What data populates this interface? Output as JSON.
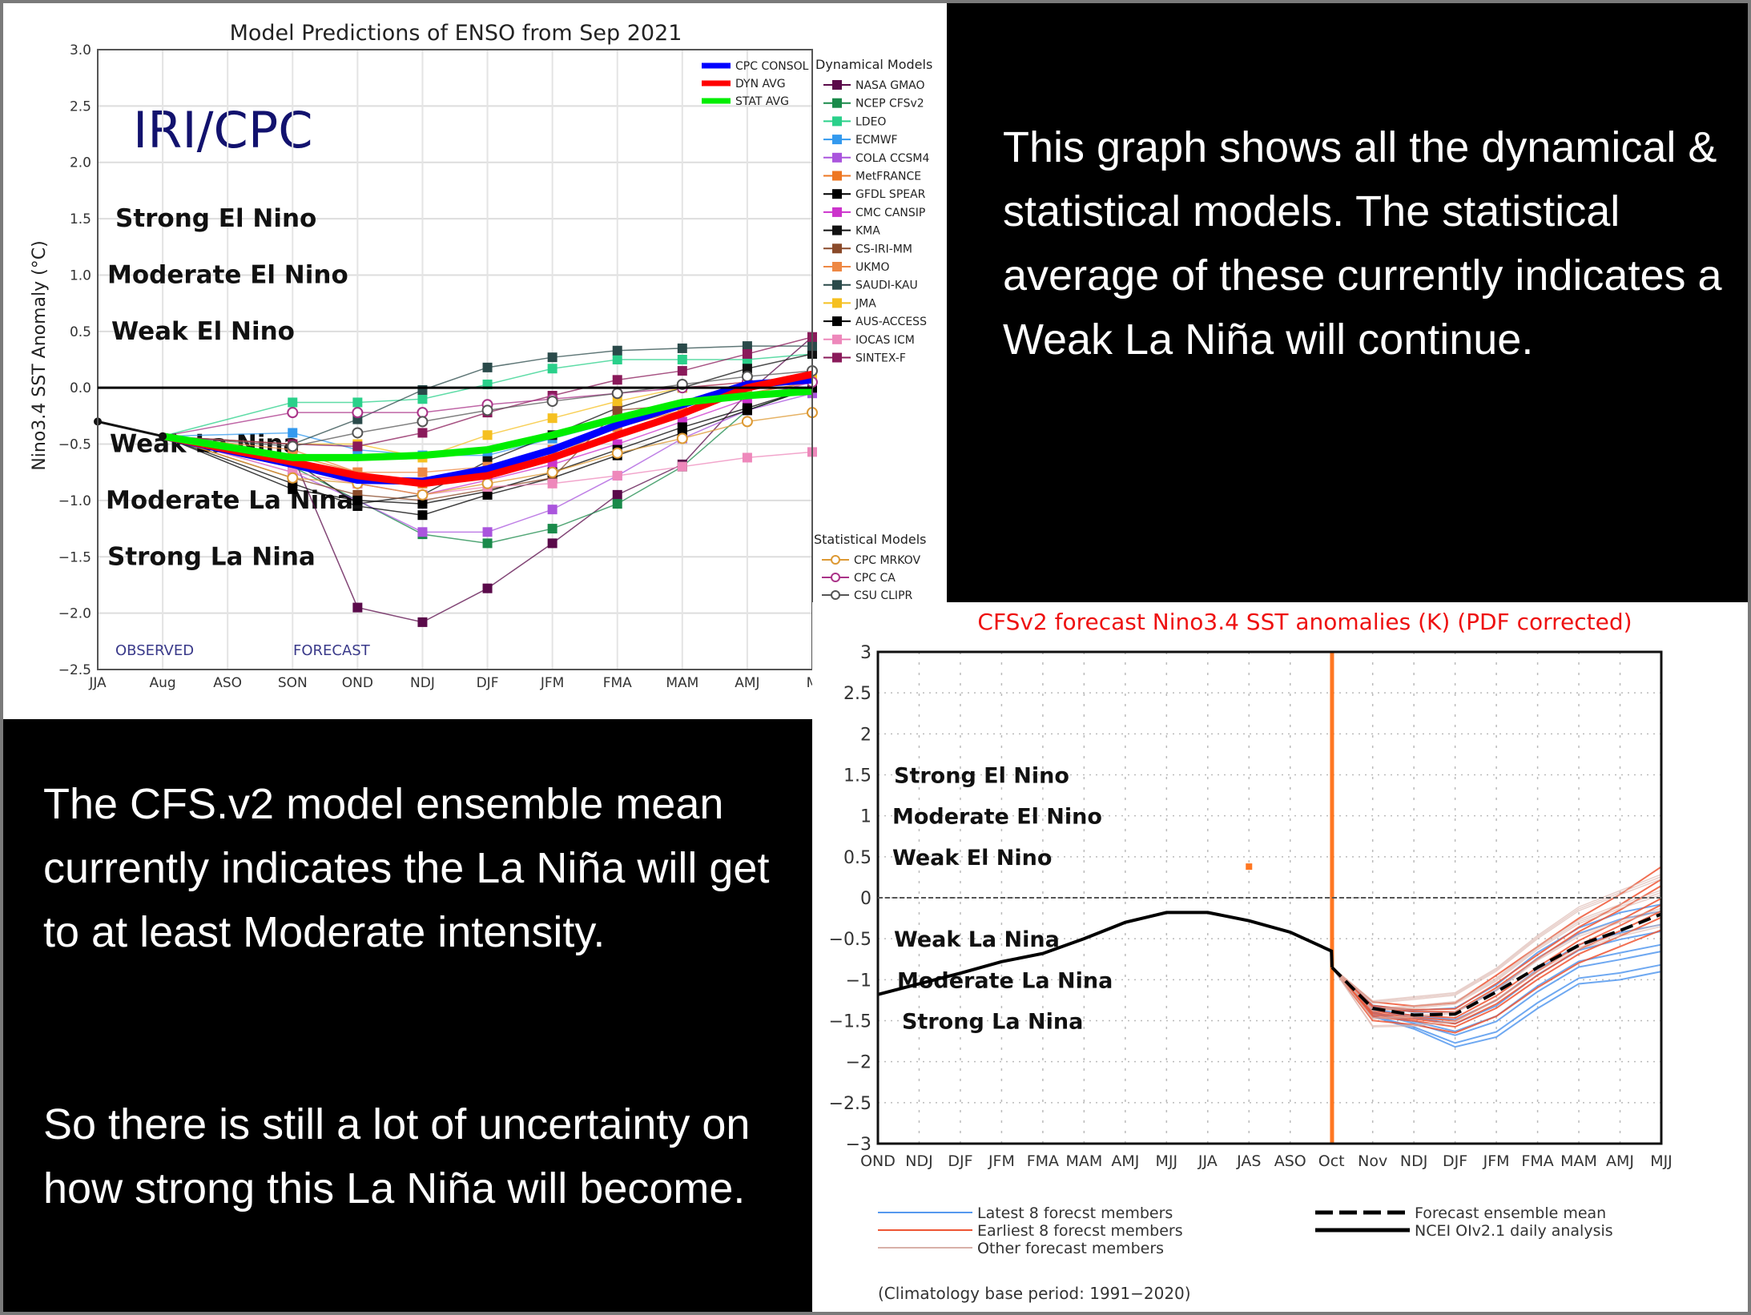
{
  "captions": {
    "top_right": "This graph shows all the dynamical & statistical models. The statistical average of these currently indicates a Weak La Niña will continue.",
    "bottom_left_1": "The CFS.v2 model ensemble mean currently indicates the La Niña will get to at least Moderate intensity.",
    "bottom_left_2": "So there is still a lot of uncertainty on how strong this La Niña will become."
  },
  "chart_data": [
    {
      "type": "line",
      "title": "Model Predictions of ENSO from Sep 2021",
      "watermark": "IRI/CPC",
      "ylabel": "Nino3.4 SST Anomaly (°C)",
      "xlabel": "",
      "ylim": [
        -2.5,
        3.0
      ],
      "yticks": [
        "3.0",
        "2.5",
        "2.0",
        "1.5",
        "1.0",
        "0.5",
        "0.0",
        "−0.5",
        "−1.0",
        "−1.5",
        "−2.0",
        "−2.5"
      ],
      "categories": [
        "JJA",
        "Aug",
        "ASO",
        "SON",
        "OND",
        "NDJ",
        "DJF",
        "JFM",
        "FMA",
        "MAM",
        "AMJ",
        "M"
      ],
      "grid": true,
      "annotations": {
        "observed": "OBSERVED",
        "forecast": "FORECAST",
        "zones": [
          "Strong El Nino",
          "Moderate El Nino",
          "Weak El Nino",
          "Weak La Nina",
          "Moderate La Nina",
          "Strong La Nina"
        ]
      },
      "observed": {
        "name": "Observed",
        "x": [
          "JJA",
          "Aug"
        ],
        "values": [
          -0.3,
          -0.43
        ]
      },
      "averages": [
        {
          "name": "CPC CONSOL",
          "color": "#0000ff",
          "values": [
            null,
            null,
            null,
            -0.68,
            -0.82,
            -0.83,
            -0.72,
            -0.55,
            -0.33,
            -0.15,
            0.03,
            0.07
          ]
        },
        {
          "name": "DYN AVG",
          "color": "#ff0000",
          "values": [
            null,
            null,
            null,
            -0.66,
            -0.78,
            -0.85,
            -0.78,
            -0.62,
            -0.42,
            -0.23,
            0.0,
            0.12
          ]
        },
        {
          "name": "STAT AVG",
          "color": "#00ee00",
          "values": [
            null,
            null,
            null,
            -0.62,
            -0.62,
            -0.6,
            -0.55,
            -0.42,
            -0.27,
            -0.13,
            -0.07,
            -0.03
          ]
        }
      ],
      "legend_dynamical_title": "Dynamical Models",
      "dynamical": [
        {
          "name": "NASA GMAO",
          "color": "#5a0a4a",
          "values": [
            null,
            null,
            null,
            -0.6,
            -1.95,
            -2.08,
            -1.78,
            -1.38,
            -0.95,
            -0.68,
            -0.05,
            0.45
          ]
        },
        {
          "name": "NCEP CFSv2",
          "color": "#1a8a4a",
          "values": [
            null,
            null,
            null,
            -0.7,
            -1.0,
            -1.3,
            -1.38,
            -1.25,
            -1.03,
            -0.7,
            -0.2,
            0.0
          ]
        },
        {
          "name": "LDEO",
          "color": "#2ad08a",
          "values": [
            null,
            null,
            null,
            -0.13,
            -0.13,
            -0.1,
            0.03,
            0.17,
            0.25,
            0.25,
            0.25,
            0.3
          ]
        },
        {
          "name": "ECMWF",
          "color": "#3399ee",
          "values": [
            null,
            null,
            null,
            -0.4,
            -0.55,
            -0.6,
            -0.6,
            -0.45,
            -0.3,
            -0.15,
            0.0,
            0.05
          ]
        },
        {
          "name": "COLA CCSM4",
          "color": "#aa55dd",
          "values": [
            null,
            null,
            null,
            -0.75,
            -1.0,
            -1.28,
            -1.28,
            -1.08,
            -0.78,
            -0.45,
            -0.2,
            -0.05
          ]
        },
        {
          "name": "MetFRANCE",
          "color": "#ee7722",
          "values": [
            null,
            null,
            null,
            -0.6,
            -0.75,
            -0.85,
            -0.8,
            -0.6,
            -0.35,
            -0.2,
            -0.05,
            0.05
          ]
        },
        {
          "name": "GFDL SPEAR",
          "color": "#000000",
          "values": [
            null,
            null,
            null,
            -0.85,
            -1.05,
            -1.13,
            -0.95,
            -0.8,
            -0.6,
            -0.4,
            -0.2,
            0.0
          ]
        },
        {
          "name": "CMC CANSIP",
          "color": "#cc33cc",
          "values": [
            null,
            null,
            null,
            -0.7,
            -0.85,
            -0.95,
            -0.82,
            -0.68,
            -0.5,
            -0.3,
            -0.1,
            0.05
          ]
        },
        {
          "name": "KMA",
          "color": "#111111",
          "values": [
            null,
            null,
            null,
            -0.65,
            -1.03,
            -0.95,
            -0.65,
            -0.42,
            -0.18,
            0.0,
            0.17,
            0.3
          ]
        },
        {
          "name": "CS-IRI-MM",
          "color": "#8a4a2a",
          "values": [
            null,
            null,
            null,
            -0.8,
            -0.95,
            -1.0,
            -0.9,
            -0.8,
            -0.2,
            -0.15,
            -0.05,
            0.0
          ]
        },
        {
          "name": "UKMO",
          "color": "#ee8844",
          "values": [
            null,
            null,
            null,
            -0.55,
            -0.75,
            -0.75,
            -0.7,
            -0.55,
            -0.35,
            -0.2,
            -0.05,
            0.05
          ]
        },
        {
          "name": "SAUDI-KAU",
          "color": "#2a4a4a",
          "values": [
            null,
            null,
            null,
            -0.5,
            -0.28,
            -0.02,
            0.18,
            0.27,
            0.33,
            0.35,
            0.37,
            0.37
          ]
        },
        {
          "name": "JMA",
          "color": "#f5c020",
          "values": [
            null,
            null,
            null,
            -0.5,
            -0.5,
            -0.62,
            -0.42,
            -0.27,
            -0.12,
            0.0,
            0.05,
            0.1
          ]
        },
        {
          "name": "AUS-ACCESS",
          "color": "#000000",
          "values": [
            null,
            null,
            null,
            -0.9,
            -1.0,
            -1.03,
            -0.92,
            -0.75,
            -0.55,
            -0.35,
            -0.18,
            0.0
          ]
        },
        {
          "name": "IOCAS ICM",
          "color": "#ee88bb",
          "values": [
            null,
            null,
            null,
            -0.75,
            -0.85,
            -0.95,
            -0.88,
            -0.85,
            -0.78,
            -0.7,
            -0.62,
            -0.57
          ]
        },
        {
          "name": "SINTEX-F",
          "color": "#8a1a5a",
          "values": [
            null,
            null,
            null,
            -0.5,
            -0.52,
            -0.4,
            -0.22,
            -0.07,
            0.07,
            0.15,
            0.3,
            0.45
          ]
        }
      ],
      "legend_statistical_title": "Statistical Models",
      "statistical": [
        {
          "name": "CPC MRKOV",
          "color": "#dd9933",
          "values": [
            null,
            null,
            null,
            -0.8,
            -0.85,
            -0.95,
            -0.85,
            -0.75,
            -0.58,
            -0.45,
            -0.3,
            -0.22
          ]
        },
        {
          "name": "CPC CA",
          "color": "#aa3388",
          "values": [
            null,
            null,
            null,
            -0.22,
            -0.22,
            -0.22,
            -0.15,
            -0.1,
            -0.05,
            0.0,
            0.05,
            0.05
          ]
        },
        {
          "name": "CSU CLIPR",
          "color": "#555555",
          "values": [
            null,
            null,
            null,
            -0.52,
            -0.4,
            -0.3,
            -0.2,
            -0.12,
            -0.05,
            0.03,
            0.1,
            0.15
          ]
        }
      ]
    },
    {
      "type": "line",
      "title": "CFSv2 forecast Nino3.4 SST anomalies (K) (PDF corrected)",
      "ylim": [
        -3,
        3
      ],
      "yticks": [
        "3",
        "2.5",
        "2",
        "1.5",
        "1",
        "0.5",
        "0",
        "−0.5",
        "−1",
        "−1.5",
        "−2",
        "−2.5",
        "−3"
      ],
      "categories": [
        "OND",
        "NDJ",
        "DJF",
        "JFM",
        "FMA",
        "MAM",
        "AMJ",
        "MJJ",
        "JJA",
        "JAS",
        "ASO",
        "Oct",
        "Nov",
        "NDJ",
        "DJF",
        "JFM",
        "FMA",
        "MAM",
        "AMJ",
        "MJJ"
      ],
      "grid": true,
      "zones": [
        "Strong El Nino",
        "Moderate El Nino",
        "Weak El Nino",
        "Weak La Nina",
        "Moderate La Nina",
        "Strong La Nina"
      ],
      "analysis": {
        "name": "NCEI OIv2.1 daily analysis",
        "color": "#000000",
        "values": [
          -1.18,
          -1.05,
          -0.92,
          -0.78,
          -0.68,
          -0.5,
          -0.3,
          -0.18,
          -0.18,
          -0.28,
          -0.42,
          -0.65,
          null,
          null,
          null,
          null,
          null,
          null,
          null,
          null
        ]
      },
      "ensemble_mean": {
        "name": "Forecast ensemble mean",
        "color": "#000000",
        "start_value": -0.85,
        "values": [
          null,
          null,
          null,
          null,
          null,
          null,
          null,
          null,
          null,
          null,
          null,
          -0.85,
          -1.35,
          -1.43,
          -1.42,
          -1.15,
          -0.85,
          -0.58,
          -0.4,
          -0.2
        ]
      },
      "member_bands": [
        {
          "name": "Latest 8 forecst members",
          "color": "#5599ee",
          "low": [
            null,
            null,
            null,
            null,
            null,
            null,
            null,
            null,
            null,
            null,
            null,
            -0.85,
            -1.45,
            -1.6,
            -1.82,
            -1.7,
            -1.35,
            -1.05,
            -1.0,
            -0.9
          ],
          "high": [
            null,
            null,
            null,
            null,
            null,
            null,
            null,
            null,
            null,
            null,
            null,
            -0.85,
            -1.3,
            -1.35,
            -1.3,
            -1.0,
            -0.6,
            -0.3,
            -0.1,
            0.0
          ]
        },
        {
          "name": "Earliest 8 forecst members",
          "color": "#ee5533",
          "low": [
            null,
            null,
            null,
            null,
            null,
            null,
            null,
            null,
            null,
            null,
            null,
            -0.85,
            -1.5,
            -1.55,
            -1.65,
            -1.45,
            -1.1,
            -0.8,
            -0.6,
            -0.4
          ],
          "high": [
            null,
            null,
            null,
            null,
            null,
            null,
            null,
            null,
            null,
            null,
            null,
            -0.85,
            -1.25,
            -1.3,
            -1.25,
            -0.9,
            -0.55,
            -0.2,
            0.1,
            0.45
          ]
        },
        {
          "name": "Other forecast members",
          "color": "#d8b0a8",
          "low": [
            null,
            null,
            null,
            null,
            null,
            null,
            null,
            null,
            null,
            null,
            null,
            -0.85,
            -1.65,
            -1.65,
            -1.6,
            -1.35,
            -1.0,
            -0.75,
            -0.6,
            -0.5
          ],
          "high": [
            null,
            null,
            null,
            null,
            null,
            null,
            null,
            null,
            null,
            null,
            null,
            -0.85,
            -1.25,
            -1.2,
            -1.15,
            -0.85,
            -0.45,
            -0.1,
            0.1,
            0.3
          ]
        }
      ],
      "marker_point": {
        "x": "JAS",
        "value": 0.38,
        "color": "#ff7722"
      },
      "forecast_start_line": {
        "x_between": [
          "Oct",
          "Nov"
        ],
        "color": "#ff7722"
      },
      "legend": [
        "Latest 8 forecst members",
        "Earliest 8 forecst members",
        "Other forecast members",
        "Forecast ensemble mean",
        "NCEI OIv2.1 daily analysis"
      ],
      "footnote": "(Climatology base period: 1991−2020)"
    }
  ]
}
